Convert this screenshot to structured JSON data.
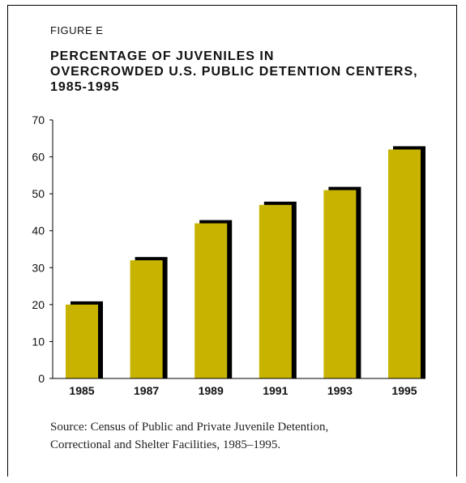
{
  "figure_label": "FIGURE E",
  "title_lines": [
    "PERCENTAGE OF JUVENILES IN",
    "OVERCROWDED U.S. PUBLIC DETENTION CENTERS,",
    "1985-1995"
  ],
  "source_lines": [
    "Source: Census of Public and Private Juvenile Detention,",
    "Correctional and Shelter Facilities, 1985–1995."
  ],
  "colors": {
    "bar": "#c8b400",
    "shadow": "#000000",
    "axis": "#000000",
    "text": "#111111"
  },
  "chart_data": {
    "type": "bar",
    "title": "PERCENTAGE OF JUVENILES IN OVERCROWDED U.S. PUBLIC DETENTION CENTERS, 1985-1995",
    "xlabel": "",
    "ylabel": "",
    "categories": [
      "1985",
      "1987",
      "1989",
      "1991",
      "1993",
      "1995"
    ],
    "values": [
      20,
      32,
      42,
      47,
      51,
      62
    ],
    "ylim": [
      0,
      70
    ],
    "yticks": [
      0,
      10,
      20,
      30,
      40,
      50,
      60,
      70
    ],
    "grid": false,
    "legend": "none"
  }
}
